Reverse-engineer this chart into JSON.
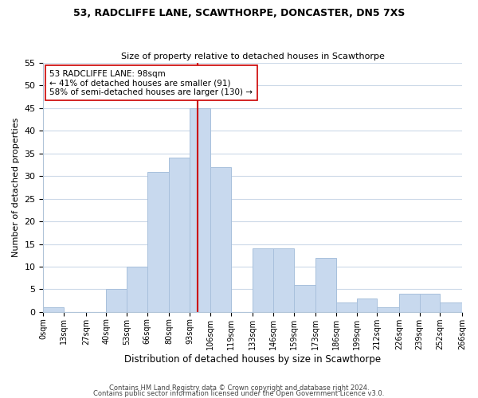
{
  "title1": "53, RADCLIFFE LANE, SCAWTHORPE, DONCASTER, DN5 7XS",
  "title2": "Size of property relative to detached houses in Scawthorpe",
  "xlabel": "Distribution of detached houses by size in Scawthorpe",
  "ylabel": "Number of detached properties",
  "bin_edges": [
    0,
    13,
    27,
    40,
    53,
    66,
    80,
    93,
    106,
    119,
    133,
    146,
    159,
    173,
    186,
    199,
    212,
    226,
    239,
    252,
    266
  ],
  "bin_labels": [
    "0sqm",
    "13sqm",
    "27sqm",
    "40sqm",
    "53sqm",
    "66sqm",
    "80sqm",
    "93sqm",
    "106sqm",
    "119sqm",
    "133sqm",
    "146sqm",
    "159sqm",
    "173sqm",
    "186sqm",
    "199sqm",
    "212sqm",
    "226sqm",
    "239sqm",
    "252sqm",
    "266sqm"
  ],
  "counts": [
    1,
    0,
    0,
    5,
    10,
    31,
    34,
    45,
    32,
    0,
    14,
    14,
    6,
    12,
    2,
    3,
    1,
    4,
    4,
    2
  ],
  "bar_color": "#c8d9ee",
  "bar_edge_color": "#a8c0dc",
  "vline_x": 98,
  "vline_color": "#cc0000",
  "annotation_line1": "53 RADCLIFFE LANE: 98sqm",
  "annotation_line2": "← 41% of detached houses are smaller (91)",
  "annotation_line3": "58% of semi-detached houses are larger (130) →",
  "annotation_box_color": "#ffffff",
  "annotation_box_edgecolor": "#cc0000",
  "ylim": [
    0,
    55
  ],
  "yticks": [
    0,
    5,
    10,
    15,
    20,
    25,
    30,
    35,
    40,
    45,
    50,
    55
  ],
  "footer1": "Contains HM Land Registry data © Crown copyright and database right 2024.",
  "footer2": "Contains public sector information licensed under the Open Government Licence v3.0.",
  "bg_color": "#ffffff",
  "grid_color": "#ccd9e8"
}
